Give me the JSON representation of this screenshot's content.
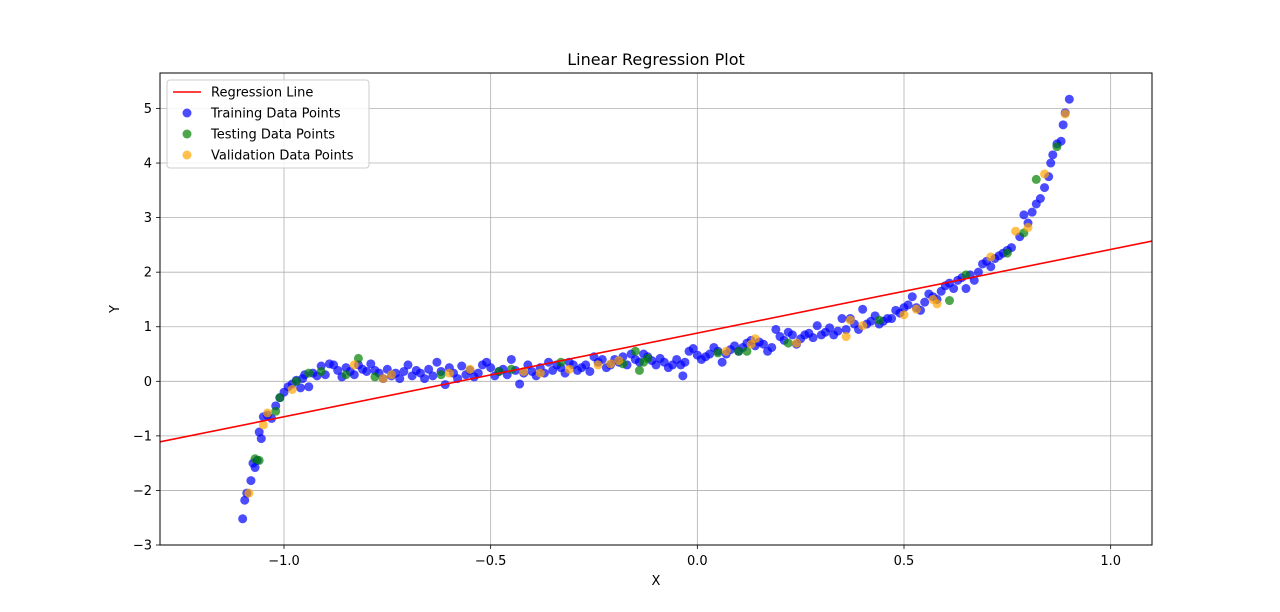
{
  "chart_data": {
    "type": "scatter",
    "title": "Linear Regression Plot",
    "xlabel": "X",
    "ylabel": "Y",
    "xlim": [
      -1.3,
      1.1
    ],
    "ylim": [
      -3.0,
      5.65
    ],
    "xticks": [
      -1.0,
      -0.5,
      0.0,
      0.5,
      1.0
    ],
    "xtick_labels": [
      "−1.0",
      "−0.5",
      "0.0",
      "0.5",
      "1.0"
    ],
    "yticks": [
      -3,
      -2,
      -1,
      0,
      1,
      2,
      3,
      4,
      5
    ],
    "ytick_labels": [
      "−3",
      "−2",
      "−1",
      "0",
      "1",
      "2",
      "3",
      "4",
      "5"
    ],
    "grid": true,
    "legend_position": "top-left",
    "regression_line": {
      "name": "Regression Line",
      "color": "#ff0000",
      "x": [
        -1.3,
        1.1
      ],
      "y": [
        -1.11,
        2.57
      ]
    },
    "series": [
      {
        "name": "Training Data Points",
        "color": "#0000ff",
        "points": [
          [
            -1.1,
            -2.52
          ],
          [
            -1.095,
            -2.18
          ],
          [
            -1.09,
            -2.05
          ],
          [
            -1.08,
            -1.82
          ],
          [
            -1.075,
            -1.5
          ],
          [
            -1.07,
            -1.58
          ],
          [
            -1.065,
            -1.45
          ],
          [
            -1.06,
            -0.93
          ],
          [
            -1.055,
            -1.05
          ],
          [
            -1.05,
            -0.65
          ],
          [
            -1.04,
            -0.62
          ],
          [
            -1.03,
            -0.68
          ],
          [
            -1.02,
            -0.45
          ],
          [
            -1.01,
            -0.3
          ],
          [
            -1.0,
            -0.2
          ],
          [
            -0.99,
            -0.1
          ],
          [
            -0.98,
            -0.05
          ],
          [
            -0.97,
            0.02
          ],
          [
            -0.96,
            -0.12
          ],
          [
            -0.955,
            0.05
          ],
          [
            -0.95,
            0.12
          ],
          [
            -0.94,
            -0.1
          ],
          [
            -0.93,
            0.15
          ],
          [
            -0.92,
            0.1
          ],
          [
            -0.91,
            0.28
          ],
          [
            -0.9,
            0.12
          ],
          [
            -0.89,
            0.32
          ],
          [
            -0.88,
            0.3
          ],
          [
            -0.87,
            0.2
          ],
          [
            -0.86,
            0.08
          ],
          [
            -0.85,
            0.25
          ],
          [
            -0.84,
            0.18
          ],
          [
            -0.83,
            0.12
          ],
          [
            -0.82,
            0.3
          ],
          [
            -0.81,
            0.22
          ],
          [
            -0.8,
            0.18
          ],
          [
            -0.79,
            0.32
          ],
          [
            -0.78,
            0.2
          ],
          [
            -0.77,
            0.15
          ],
          [
            -0.76,
            0.05
          ],
          [
            -0.75,
            0.22
          ],
          [
            -0.74,
            0.1
          ],
          [
            -0.73,
            0.15
          ],
          [
            -0.72,
            0.05
          ],
          [
            -0.71,
            0.18
          ],
          [
            -0.7,
            0.3
          ],
          [
            -0.69,
            0.1
          ],
          [
            -0.68,
            0.2
          ],
          [
            -0.67,
            0.15
          ],
          [
            -0.66,
            0.05
          ],
          [
            -0.65,
            0.22
          ],
          [
            -0.64,
            0.1
          ],
          [
            -0.63,
            0.35
          ],
          [
            -0.62,
            0.18
          ],
          [
            -0.61,
            -0.06
          ],
          [
            -0.6,
            0.25
          ],
          [
            -0.59,
            0.15
          ],
          [
            -0.58,
            0.05
          ],
          [
            -0.57,
            0.28
          ],
          [
            -0.56,
            0.12
          ],
          [
            -0.55,
            0.2
          ],
          [
            -0.54,
            0.08
          ],
          [
            -0.53,
            0.15
          ],
          [
            -0.52,
            0.3
          ],
          [
            -0.51,
            0.35
          ],
          [
            -0.5,
            0.25
          ],
          [
            -0.49,
            0.1
          ],
          [
            -0.48,
            0.18
          ],
          [
            -0.47,
            0.22
          ],
          [
            -0.46,
            0.12
          ],
          [
            -0.45,
            0.4
          ],
          [
            -0.44,
            0.2
          ],
          [
            -0.43,
            -0.05
          ],
          [
            -0.42,
            0.15
          ],
          [
            -0.41,
            0.3
          ],
          [
            -0.4,
            0.18
          ],
          [
            -0.39,
            0.1
          ],
          [
            -0.38,
            0.25
          ],
          [
            -0.37,
            0.15
          ],
          [
            -0.36,
            0.35
          ],
          [
            -0.35,
            0.2
          ],
          [
            -0.34,
            0.3
          ],
          [
            -0.33,
            0.25
          ],
          [
            -0.32,
            0.15
          ],
          [
            -0.31,
            0.35
          ],
          [
            -0.3,
            0.3
          ],
          [
            -0.29,
            0.2
          ],
          [
            -0.28,
            0.25
          ],
          [
            -0.27,
            0.3
          ],
          [
            -0.26,
            0.18
          ],
          [
            -0.25,
            0.45
          ],
          [
            -0.24,
            0.35
          ],
          [
            -0.23,
            0.4
          ],
          [
            -0.22,
            0.25
          ],
          [
            -0.21,
            0.3
          ],
          [
            -0.2,
            0.4
          ],
          [
            -0.19,
            0.35
          ],
          [
            -0.18,
            0.45
          ],
          [
            -0.17,
            0.3
          ],
          [
            -0.16,
            0.5
          ],
          [
            -0.15,
            0.4
          ],
          [
            -0.14,
            0.35
          ],
          [
            -0.13,
            0.5
          ],
          [
            -0.12,
            0.45
          ],
          [
            -0.11,
            0.38
          ],
          [
            -0.1,
            0.3
          ],
          [
            -0.09,
            0.42
          ],
          [
            -0.08,
            0.35
          ],
          [
            -0.07,
            0.25
          ],
          [
            -0.06,
            0.3
          ],
          [
            -0.05,
            0.4
          ],
          [
            -0.04,
            0.3
          ],
          [
            -0.035,
            0.1
          ],
          [
            -0.03,
            0.35
          ],
          [
            -0.02,
            0.55
          ],
          [
            -0.01,
            0.6
          ],
          [
            0.0,
            0.48
          ],
          [
            0.01,
            0.4
          ],
          [
            0.02,
            0.45
          ],
          [
            0.03,
            0.5
          ],
          [
            0.04,
            0.62
          ],
          [
            0.05,
            0.55
          ],
          [
            0.06,
            0.35
          ],
          [
            0.07,
            0.5
          ],
          [
            0.08,
            0.58
          ],
          [
            0.09,
            0.65
          ],
          [
            0.1,
            0.55
          ],
          [
            0.11,
            0.62
          ],
          [
            0.12,
            0.7
          ],
          [
            0.13,
            0.75
          ],
          [
            0.14,
            0.65
          ],
          [
            0.15,
            0.72
          ],
          [
            0.16,
            0.68
          ],
          [
            0.17,
            0.55
          ],
          [
            0.18,
            0.62
          ],
          [
            0.19,
            0.95
          ],
          [
            0.2,
            0.82
          ],
          [
            0.21,
            0.75
          ],
          [
            0.22,
            0.9
          ],
          [
            0.23,
            0.85
          ],
          [
            0.24,
            0.68
          ],
          [
            0.25,
            0.78
          ],
          [
            0.26,
            0.85
          ],
          [
            0.27,
            0.88
          ],
          [
            0.28,
            0.8
          ],
          [
            0.29,
            1.02
          ],
          [
            0.3,
            0.85
          ],
          [
            0.31,
            0.9
          ],
          [
            0.32,
            0.98
          ],
          [
            0.33,
            0.85
          ],
          [
            0.34,
            0.92
          ],
          [
            0.35,
            1.15
          ],
          [
            0.36,
            0.95
          ],
          [
            0.37,
            1.15
          ],
          [
            0.38,
            1.05
          ],
          [
            0.39,
            0.95
          ],
          [
            0.4,
            1.32
          ],
          [
            0.41,
            1.05
          ],
          [
            0.42,
            1.1
          ],
          [
            0.43,
            1.2
          ],
          [
            0.44,
            1.05
          ],
          [
            0.45,
            1.1
          ],
          [
            0.46,
            1.15
          ],
          [
            0.47,
            1.15
          ],
          [
            0.48,
            1.3
          ],
          [
            0.49,
            1.25
          ],
          [
            0.5,
            1.35
          ],
          [
            0.51,
            1.4
          ],
          [
            0.52,
            1.55
          ],
          [
            0.53,
            1.35
          ],
          [
            0.54,
            1.3
          ],
          [
            0.55,
            1.45
          ],
          [
            0.56,
            1.6
          ],
          [
            0.57,
            1.55
          ],
          [
            0.58,
            1.5
          ],
          [
            0.59,
            1.65
          ],
          [
            0.6,
            1.75
          ],
          [
            0.61,
            1.8
          ],
          [
            0.62,
            1.7
          ],
          [
            0.63,
            1.85
          ],
          [
            0.64,
            1.9
          ],
          [
            0.65,
            1.7
          ],
          [
            0.66,
            1.95
          ],
          [
            0.67,
            1.85
          ],
          [
            0.68,
            2.0
          ],
          [
            0.69,
            2.15
          ],
          [
            0.7,
            2.2
          ],
          [
            0.71,
            2.1
          ],
          [
            0.72,
            2.25
          ],
          [
            0.73,
            2.3
          ],
          [
            0.74,
            2.35
          ],
          [
            0.75,
            2.4
          ],
          [
            0.76,
            2.45
          ],
          [
            0.78,
            2.65
          ],
          [
            0.79,
            3.05
          ],
          [
            0.8,
            2.9
          ],
          [
            0.81,
            3.1
          ],
          [
            0.82,
            3.25
          ],
          [
            0.83,
            3.35
          ],
          [
            0.84,
            3.55
          ],
          [
            0.85,
            3.75
          ],
          [
            0.855,
            4.0
          ],
          [
            0.86,
            4.15
          ],
          [
            0.87,
            4.35
          ],
          [
            0.88,
            4.4
          ],
          [
            0.885,
            4.7
          ],
          [
            0.89,
            4.92
          ],
          [
            0.9,
            5.17
          ]
        ]
      },
      {
        "name": "Testing Data Points",
        "color": "#008000",
        "points": [
          [
            -1.07,
            -1.42
          ],
          [
            -1.06,
            -1.45
          ],
          [
            -1.02,
            -0.55
          ],
          [
            -1.01,
            -0.3
          ],
          [
            -0.97,
            0.0
          ],
          [
            -0.94,
            0.15
          ],
          [
            -0.91,
            0.18
          ],
          [
            -0.85,
            0.12
          ],
          [
            -0.82,
            0.42
          ],
          [
            -0.78,
            0.08
          ],
          [
            -0.62,
            0.12
          ],
          [
            -0.48,
            0.18
          ],
          [
            -0.45,
            0.22
          ],
          [
            -0.33,
            0.35
          ],
          [
            -0.18,
            0.32
          ],
          [
            -0.15,
            0.55
          ],
          [
            -0.14,
            0.2
          ],
          [
            -0.13,
            0.35
          ],
          [
            -0.12,
            0.42
          ],
          [
            0.05,
            0.52
          ],
          [
            0.1,
            0.55
          ],
          [
            0.12,
            0.55
          ],
          [
            0.22,
            0.7
          ],
          [
            0.44,
            1.12
          ],
          [
            0.61,
            1.48
          ],
          [
            0.65,
            1.95
          ],
          [
            0.75,
            2.35
          ],
          [
            0.79,
            2.72
          ],
          [
            0.82,
            3.7
          ],
          [
            0.87,
            4.3
          ]
        ]
      },
      {
        "name": "Validation Data Points",
        "color": "#ffa500",
        "points": [
          [
            -1.085,
            -2.05
          ],
          [
            -1.05,
            -0.8
          ],
          [
            -1.04,
            -0.58
          ],
          [
            -0.98,
            -0.15
          ],
          [
            -0.83,
            0.3
          ],
          [
            -0.76,
            0.05
          ],
          [
            -0.74,
            0.12
          ],
          [
            -0.6,
            0.15
          ],
          [
            -0.55,
            0.22
          ],
          [
            -0.42,
            0.18
          ],
          [
            -0.38,
            0.15
          ],
          [
            -0.31,
            0.22
          ],
          [
            -0.24,
            0.3
          ],
          [
            -0.21,
            0.32
          ],
          [
            -0.19,
            0.38
          ],
          [
            0.07,
            0.55
          ],
          [
            0.13,
            0.68
          ],
          [
            0.14,
            0.78
          ],
          [
            0.24,
            0.7
          ],
          [
            0.36,
            0.82
          ],
          [
            0.37,
            1.12
          ],
          [
            0.4,
            1.02
          ],
          [
            0.5,
            1.22
          ],
          [
            0.53,
            1.32
          ],
          [
            0.57,
            1.5
          ],
          [
            0.58,
            1.42
          ],
          [
            0.71,
            2.28
          ],
          [
            0.77,
            2.75
          ],
          [
            0.8,
            2.82
          ],
          [
            0.84,
            3.8
          ],
          [
            0.89,
            4.9
          ]
        ]
      }
    ]
  }
}
